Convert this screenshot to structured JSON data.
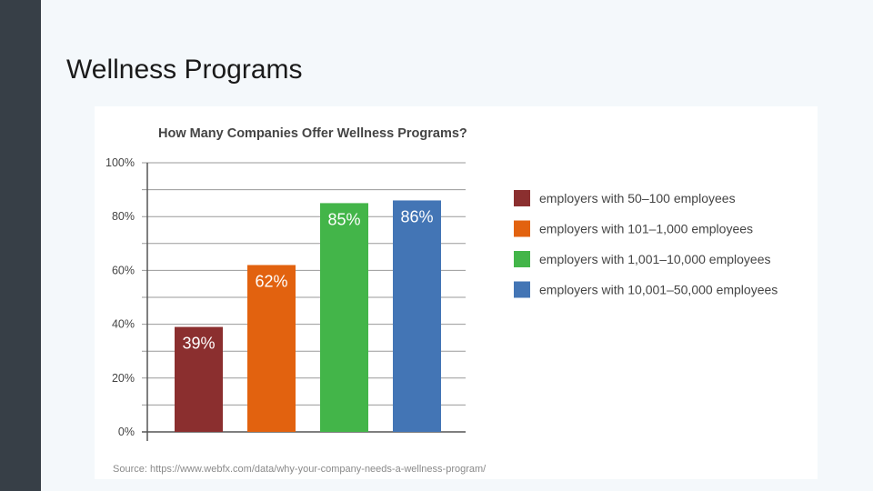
{
  "slide": {
    "title": "Wellness Programs"
  },
  "colors": {
    "sidebar": "#373f47",
    "background": "#f4f8fb",
    "axis_text": "#444444",
    "grid": "#9a9a9a"
  },
  "chart_data": {
    "type": "bar",
    "title": "How Many Companies Offer Wellness Programs?",
    "categories": [
      "employers with 50–100 employees",
      "employers with 101–1,000 employees",
      "employers with 1,001–10,000 employees",
      "employers with 10,001–50,000 employees"
    ],
    "values": [
      39,
      62,
      85,
      86
    ],
    "value_labels": [
      "39%",
      "62%",
      "85%",
      "86%"
    ],
    "colors": [
      "#8b2f2f",
      "#e2620f",
      "#43b549",
      "#4375b5"
    ],
    "ylim": [
      0,
      100
    ],
    "yticks": [
      0,
      20,
      40,
      60,
      80,
      100
    ],
    "ytick_labels": [
      "0%",
      "20%",
      "40%",
      "60%",
      "80%",
      "100%"
    ],
    "grid": true,
    "legend_position": "right",
    "source": "Source: https://www.webfx.com/data/why-your-company-needs-a-wellness-program/"
  }
}
